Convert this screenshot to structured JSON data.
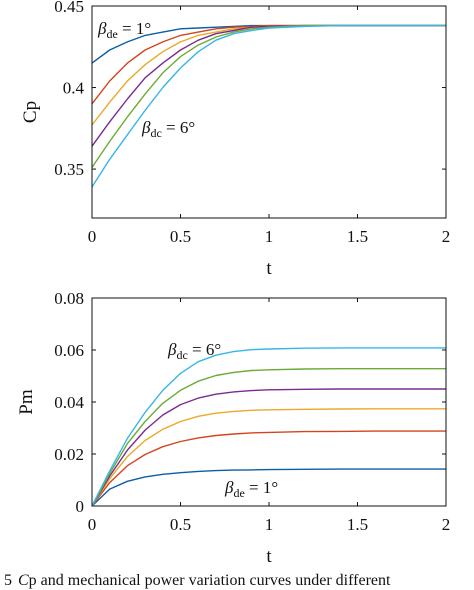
{
  "colors": [
    "#0b5fa5",
    "#d2451d",
    "#e9a92a",
    "#7a2c8e",
    "#6bab35",
    "#36b6e6"
  ],
  "caption": {
    "prefix": "5",
    "var": "C",
    "rest": "p and mechanical power variation curves under different"
  },
  "chart_data": [
    {
      "type": "line",
      "xlabel": "t",
      "ylabel": "Cp",
      "xlim": [
        0,
        2
      ],
      "ylim": [
        0.32,
        0.45
      ],
      "xticks": [
        0,
        0.5,
        1,
        1.5,
        2
      ],
      "xtick_labels": [
        "0",
        "0.5",
        "1",
        "1.5",
        "2"
      ],
      "yticks": [
        0.35,
        0.4,
        0.45
      ],
      "ytick_labels": [
        "0.35",
        "0.4",
        "0.45"
      ],
      "grid": false,
      "x": [
        0,
        0.1,
        0.2,
        0.3,
        0.4,
        0.5,
        0.6,
        0.7,
        0.8,
        0.9,
        1.0,
        1.2,
        1.4,
        1.6,
        1.8,
        2.0
      ],
      "series": [
        {
          "values": [
            0.415,
            0.423,
            0.428,
            0.432,
            0.434,
            0.436,
            0.4365,
            0.437,
            0.4375,
            0.438,
            0.438,
            0.438,
            0.438,
            0.438,
            0.438,
            0.438
          ]
        },
        {
          "values": [
            0.39,
            0.404,
            0.415,
            0.423,
            0.428,
            0.432,
            0.434,
            0.436,
            0.437,
            0.4375,
            0.438,
            0.438,
            0.438,
            0.438,
            0.438,
            0.438
          ]
        },
        {
          "values": [
            0.377,
            0.391,
            0.404,
            0.414,
            0.422,
            0.428,
            0.432,
            0.434,
            0.436,
            0.437,
            0.4375,
            0.438,
            0.438,
            0.438,
            0.438,
            0.438
          ]
        },
        {
          "values": [
            0.364,
            0.379,
            0.393,
            0.406,
            0.415,
            0.423,
            0.429,
            0.433,
            0.435,
            0.437,
            0.4375,
            0.438,
            0.438,
            0.438,
            0.438,
            0.438
          ]
        },
        {
          "values": [
            0.351,
            0.367,
            0.382,
            0.396,
            0.409,
            0.419,
            0.426,
            0.431,
            0.434,
            0.436,
            0.437,
            0.438,
            0.438,
            0.438,
            0.438,
            0.438
          ]
        },
        {
          "values": [
            0.339,
            0.356,
            0.371,
            0.386,
            0.4,
            0.412,
            0.422,
            0.429,
            0.433,
            0.435,
            0.4365,
            0.4375,
            0.438,
            0.438,
            0.438,
            0.438
          ]
        }
      ],
      "annotations": [
        {
          "symbol": "β",
          "sub": "de",
          "text": " = 1°"
        },
        {
          "symbol": "β",
          "sub": "dc",
          "text": " = 6°"
        }
      ]
    },
    {
      "type": "line",
      "xlabel": "t",
      "ylabel": "Pm",
      "xlim": [
        0,
        2
      ],
      "ylim": [
        0,
        0.08
      ],
      "xticks": [
        0,
        0.5,
        1,
        1.5,
        2
      ],
      "xtick_labels": [
        "0",
        "0.5",
        "1",
        "1.5",
        "2"
      ],
      "yticks": [
        0,
        0.02,
        0.04,
        0.06,
        0.08
      ],
      "ytick_labels": [
        "0",
        "0.02",
        "0.04",
        "0.06",
        "0.08"
      ],
      "grid": false,
      "x": [
        0,
        0.1,
        0.2,
        0.3,
        0.4,
        0.5,
        0.6,
        0.7,
        0.8,
        0.9,
        1.0,
        1.2,
        1.4,
        1.6,
        1.8,
        2.0
      ],
      "series": [
        {
          "values": [
            0.0,
            0.0065,
            0.0095,
            0.0112,
            0.0122,
            0.0128,
            0.0133,
            0.0136,
            0.0138,
            0.0139,
            0.014,
            0.0141,
            0.0142,
            0.0142,
            0.0142,
            0.0142
          ]
        },
        {
          "values": [
            0.0,
            0.009,
            0.0155,
            0.0198,
            0.0228,
            0.0248,
            0.0262,
            0.0271,
            0.0277,
            0.0281,
            0.0283,
            0.0286,
            0.0287,
            0.0288,
            0.0288,
            0.0288
          ]
        },
        {
          "values": [
            0.0,
            0.0105,
            0.019,
            0.0252,
            0.0295,
            0.0325,
            0.0345,
            0.0357,
            0.0364,
            0.0368,
            0.037,
            0.0372,
            0.0373,
            0.0374,
            0.0374,
            0.0374
          ]
        },
        {
          "values": [
            0.0,
            0.0115,
            0.0215,
            0.0292,
            0.035,
            0.039,
            0.0415,
            0.043,
            0.0439,
            0.0444,
            0.0447,
            0.0449,
            0.045,
            0.045,
            0.045,
            0.045
          ]
        },
        {
          "values": [
            0.0,
            0.0125,
            0.024,
            0.0325,
            0.0395,
            0.0445,
            0.048,
            0.0502,
            0.0514,
            0.0521,
            0.0524,
            0.0527,
            0.0528,
            0.0528,
            0.0528,
            0.0528
          ]
        },
        {
          "values": [
            0.0,
            0.0135,
            0.026,
            0.036,
            0.0445,
            0.051,
            0.0555,
            0.058,
            0.0594,
            0.0601,
            0.0604,
            0.0607,
            0.0608,
            0.0608,
            0.0608,
            0.0608
          ]
        }
      ],
      "annotations": [
        {
          "symbol": "β",
          "sub": "dc",
          "text": " = 6°"
        },
        {
          "symbol": "β",
          "sub": "de",
          "text": " = 1°"
        }
      ]
    }
  ]
}
